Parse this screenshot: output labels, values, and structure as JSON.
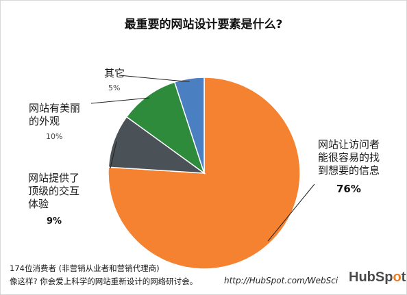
{
  "chart_data": {
    "type": "pie",
    "title": "最重要的网站设计要素是什么?",
    "slices": [
      {
        "label_lines": [
          "网站让访问者",
          "能很容易的找",
          "到想要的信息"
        ],
        "value": 76,
        "value_label": "76%",
        "color": "#f58231"
      },
      {
        "label_lines": [
          "网站提供了",
          "顶级的交互",
          "体验"
        ],
        "value": 9,
        "value_label": "9%",
        "color": "#4a5157"
      },
      {
        "label_lines": [
          "网站有美丽",
          "的外观"
        ],
        "value": 10,
        "value_label": "10%",
        "color": "#2e8b3b"
      },
      {
        "label_lines": [
          "其它"
        ],
        "value": 5,
        "value_label": "5%",
        "color": "#4a7fc1"
      }
    ]
  },
  "footer": {
    "note_line1": "174位消费者 (非营销从业者和营销代理商)",
    "note_line2": "像这样? 你会爱上科学的网站重新设计的网络研讨会。",
    "url": "http://HubSpot.com/WebSci",
    "logo_pre": "HubSp",
    "logo_o": "o",
    "logo_post": "t"
  }
}
